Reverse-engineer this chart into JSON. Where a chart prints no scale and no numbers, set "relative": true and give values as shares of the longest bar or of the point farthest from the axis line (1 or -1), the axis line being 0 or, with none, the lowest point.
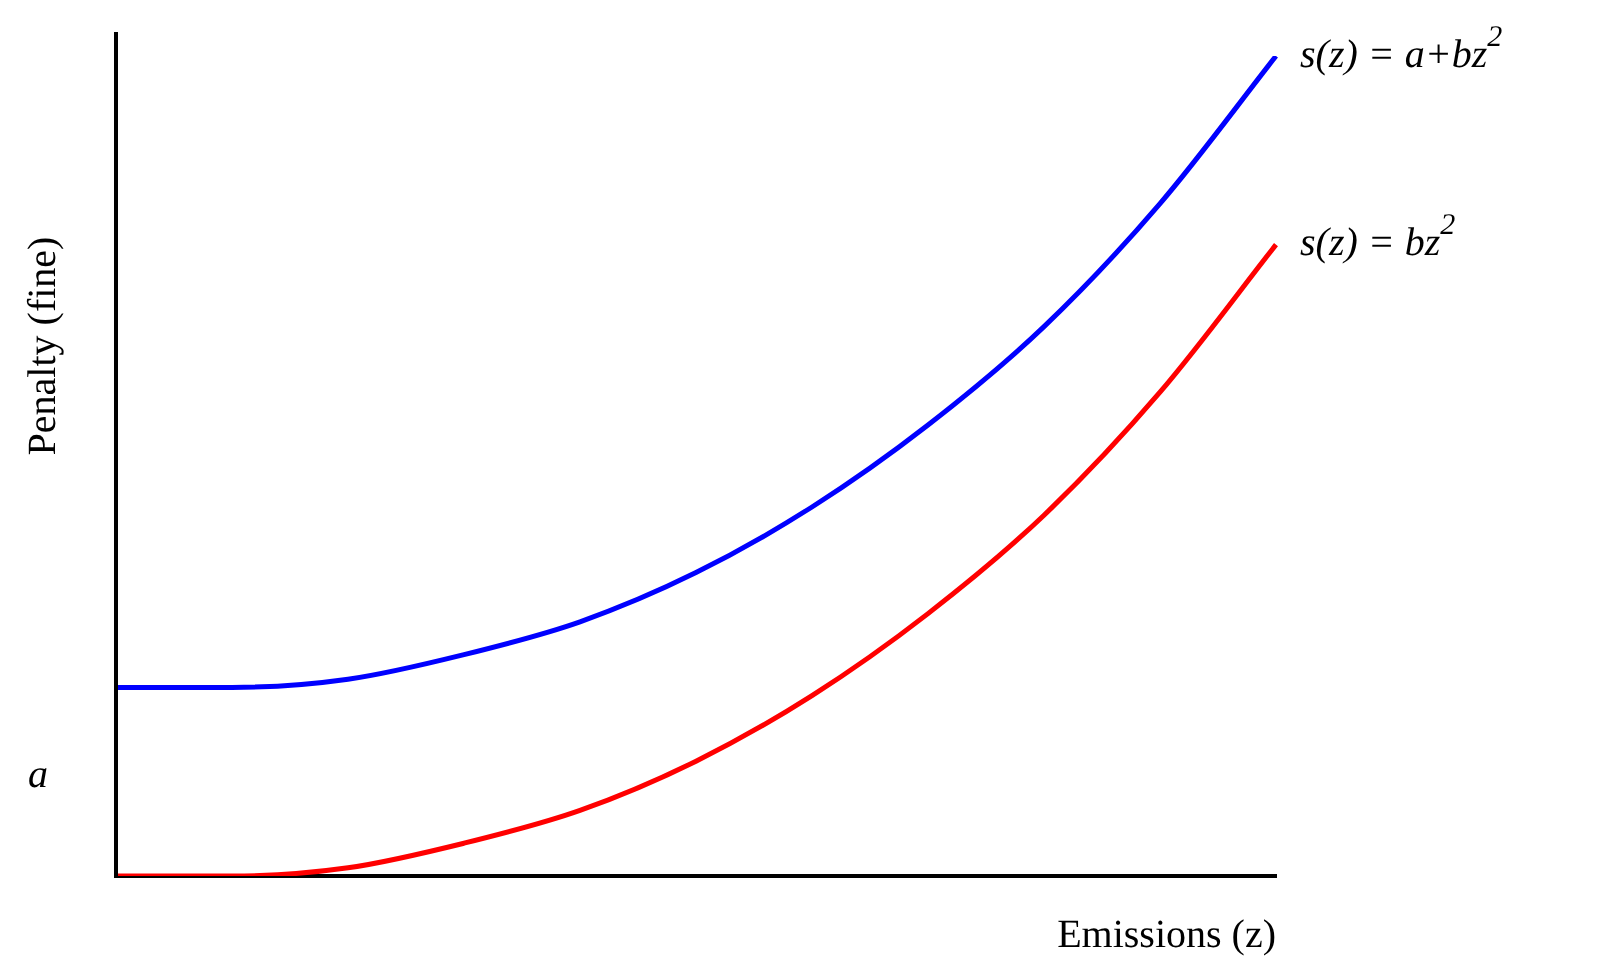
{
  "chart_data": {
    "type": "line",
    "relative": true,
    "xlabel": "Emissions (z)",
    "ylabel": "Penalty (fine)",
    "categories": [
      null,
      null,
      null,
      null,
      null,
      null,
      null,
      null,
      null,
      null,
      null
    ],
    "series": [
      {
        "name": "s(z) = a+bz$^{2}$",
        "color": "#0000ff",
        "values": [
          0.23,
          0.23,
          0.24,
          0.27,
          0.31,
          0.37,
          0.45,
          0.55,
          0.67,
          0.82,
          1
        ]
      },
      {
        "name": "s(z) = bz$^{2}$",
        "color": "#ff0000",
        "values": [
          0,
          0,
          0.01,
          0.04,
          0.08,
          0.14,
          0.22,
          0.32,
          0.44,
          0.59,
          0.77
        ]
      }
    ],
    "annotations": [
      "a"
    ],
    "grid": false,
    "legend": false,
    "marker": "none",
    "line_style": "solid"
  }
}
